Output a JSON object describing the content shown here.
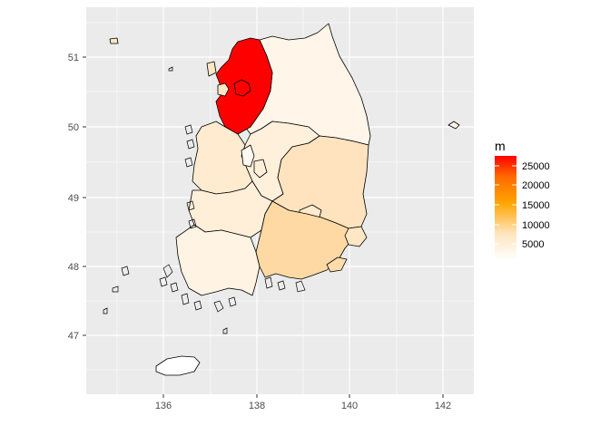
{
  "chart_data": {
    "type": "choropleth",
    "xlim": [
      134.3,
      142.8
    ],
    "ylim": [
      46.2,
      51.6
    ],
    "x_ticks": [
      136,
      138,
      140,
      142
    ],
    "y_ticks": [
      47,
      48,
      49,
      50,
      51
    ],
    "x_tick_labels": [
      "136",
      "138",
      "140",
      "142"
    ],
    "y_tick_labels": [
      "47",
      "48",
      "49",
      "50",
      "51"
    ],
    "grid": true,
    "legend": {
      "title": "m",
      "position": "right",
      "range": [
        0,
        26500
      ],
      "breaks": [
        5000,
        10000,
        15000,
        20000,
        25000
      ],
      "labels": [
        "5000",
        "10000",
        "15000",
        "20000",
        "25000"
      ],
      "colors": [
        "#ffffff",
        "#ffa500",
        "#ff0000"
      ]
    },
    "regions": [
      {
        "id": "gyeonggi",
        "value": 26000
      },
      {
        "id": "seoul",
        "value": 26000
      },
      {
        "id": "incheon",
        "value": 4000
      },
      {
        "id": "gangwon",
        "value": 1500
      },
      {
        "id": "chungnam",
        "value": 3500
      },
      {
        "id": "sejong",
        "value": 500
      },
      {
        "id": "daejeon",
        "value": 2000
      },
      {
        "id": "chungbuk",
        "value": 2500
      },
      {
        "id": "gyeongbuk",
        "value": 5000
      },
      {
        "id": "daegu",
        "value": 3500
      },
      {
        "id": "jeonbuk",
        "value": 2500
      },
      {
        "id": "gwangju",
        "value": 2000
      },
      {
        "id": "jeonnam",
        "value": 2000
      },
      {
        "id": "gyeongnam",
        "value": 8000
      },
      {
        "id": "ulsan",
        "value": 4500
      },
      {
        "id": "busan",
        "value": 7000
      },
      {
        "id": "jeju",
        "value": 500
      }
    ]
  }
}
